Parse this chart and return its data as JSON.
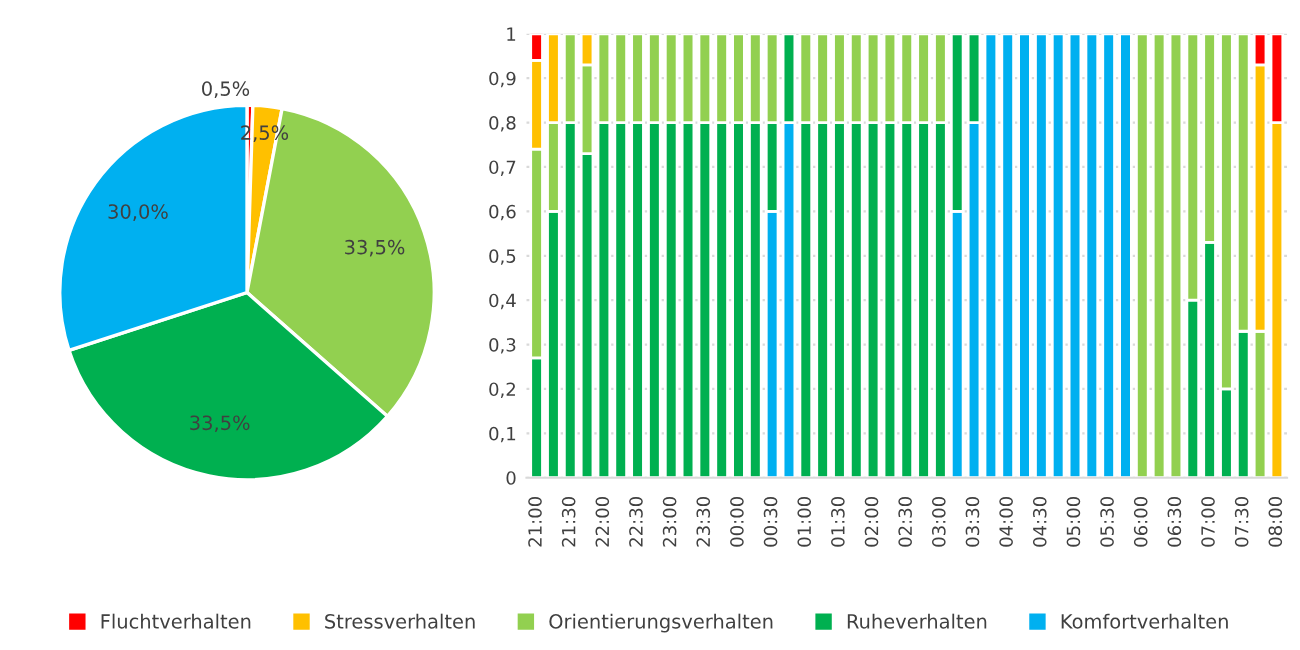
{
  "chart_data": [
    {
      "type": "pie",
      "categories": [
        "Fluchtverhalten",
        "Stressverhalten",
        "Orientierungsverhalten",
        "Ruheverhalten",
        "Komfortverhalten"
      ],
      "values": [
        0.5,
        2.5,
        33.5,
        33.5,
        30.0
      ],
      "colors": [
        "#ff0000",
        "#ffc000",
        "#92d050",
        "#00b050",
        "#00b0f0"
      ],
      "value_labels": [
        "0,5%",
        "2,5%",
        "33,5%",
        "33,5%",
        "30,0%"
      ],
      "legend": "bottom"
    },
    {
      "type": "bar",
      "stacked": true,
      "categories": [
        "21:00",
        null,
        "21:30",
        null,
        "22:00",
        null,
        "22:30",
        null,
        "23:00",
        null,
        "23:30",
        null,
        "00:00",
        null,
        "00:30",
        null,
        "01:00",
        null,
        "01:30",
        null,
        "02:00",
        null,
        "02:30",
        null,
        "03:00",
        null,
        "03:30",
        null,
        "04:00",
        null,
        "04:30",
        null,
        "05:00",
        null,
        "05:30",
        null,
        "06:00",
        null,
        "06:30",
        null,
        "07:00",
        null,
        "07:30",
        null,
        "08:00"
      ],
      "series": [
        {
          "color": "#00b0f0",
          "values": [
            null,
            null,
            null,
            null,
            null,
            null,
            null,
            null,
            null,
            null,
            null,
            null,
            null,
            null,
            0.6,
            0.8,
            null,
            null,
            null,
            null,
            null,
            null,
            null,
            null,
            null,
            0.6,
            0.8,
            1,
            1,
            1,
            1,
            1,
            1,
            1,
            1,
            1,
            null,
            null,
            null,
            null,
            null,
            null,
            null,
            null,
            null
          ]
        },
        {
          "color": "#00b050",
          "values": [
            0.27,
            0.6,
            0.8,
            0.73,
            0.8,
            0.8,
            0.8,
            0.8,
            0.8,
            0.8,
            0.8,
            0.8,
            0.8,
            0.8,
            0.2,
            0.2,
            0.8,
            0.8,
            0.8,
            0.8,
            0.8,
            0.8,
            0.8,
            0.8,
            0.8,
            0.4,
            0.2,
            null,
            null,
            null,
            null,
            null,
            null,
            null,
            null,
            null,
            null,
            null,
            null,
            0.4,
            0.53,
            0.2,
            0.33,
            null,
            null
          ]
        },
        {
          "color": "#92d050",
          "values": [
            0.47,
            0.2,
            0.2,
            0.2,
            0.2,
            0.2,
            0.2,
            0.2,
            0.2,
            0.2,
            0.2,
            0.2,
            0.2,
            0.2,
            0.2,
            null,
            0.2,
            0.2,
            0.2,
            0.2,
            0.2,
            0.2,
            0.2,
            0.2,
            0.2,
            null,
            null,
            null,
            null,
            null,
            null,
            null,
            null,
            null,
            null,
            null,
            1,
            1,
            1,
            0.6,
            0.47,
            0.8,
            0.67,
            0.33,
            null
          ]
        },
        {
          "color": "#ffc000",
          "values": [
            0.2,
            0.2,
            null,
            0.07,
            null,
            null,
            null,
            null,
            null,
            null,
            null,
            null,
            null,
            null,
            null,
            null,
            null,
            null,
            null,
            null,
            null,
            null,
            null,
            null,
            null,
            null,
            null,
            null,
            null,
            null,
            null,
            null,
            null,
            null,
            null,
            null,
            null,
            null,
            null,
            null,
            null,
            null,
            null,
            0.6,
            0.8
          ]
        },
        {
          "color": "#ff0000",
          "values": [
            0.06,
            null,
            null,
            null,
            null,
            null,
            null,
            null,
            null,
            null,
            null,
            null,
            null,
            null,
            null,
            null,
            null,
            null,
            null,
            null,
            null,
            null,
            null,
            null,
            null,
            null,
            null,
            null,
            null,
            null,
            null,
            null,
            null,
            null,
            null,
            null,
            null,
            null,
            null,
            null,
            null,
            null,
            null,
            0.07,
            0.2
          ]
        }
      ],
      "ylim": [
        0,
        1
      ],
      "yticks": [
        0,
        {
          "value": 0.1,
          "label": "0,1"
        },
        {
          "value": 0.2,
          "label": "0,2"
        },
        {
          "value": 0.3,
          "label": "0,3"
        },
        {
          "value": 0.4,
          "label": "0,4"
        },
        {
          "value": 0.5,
          "label": "0,5"
        },
        {
          "value": 0.6,
          "label": "0,6"
        },
        {
          "value": 0.7,
          "label": "0,7"
        },
        {
          "value": 0.8,
          "label": "0,8"
        },
        {
          "value": 0.9,
          "label": "0,9"
        },
        1
      ],
      "grid": "y"
    }
  ]
}
